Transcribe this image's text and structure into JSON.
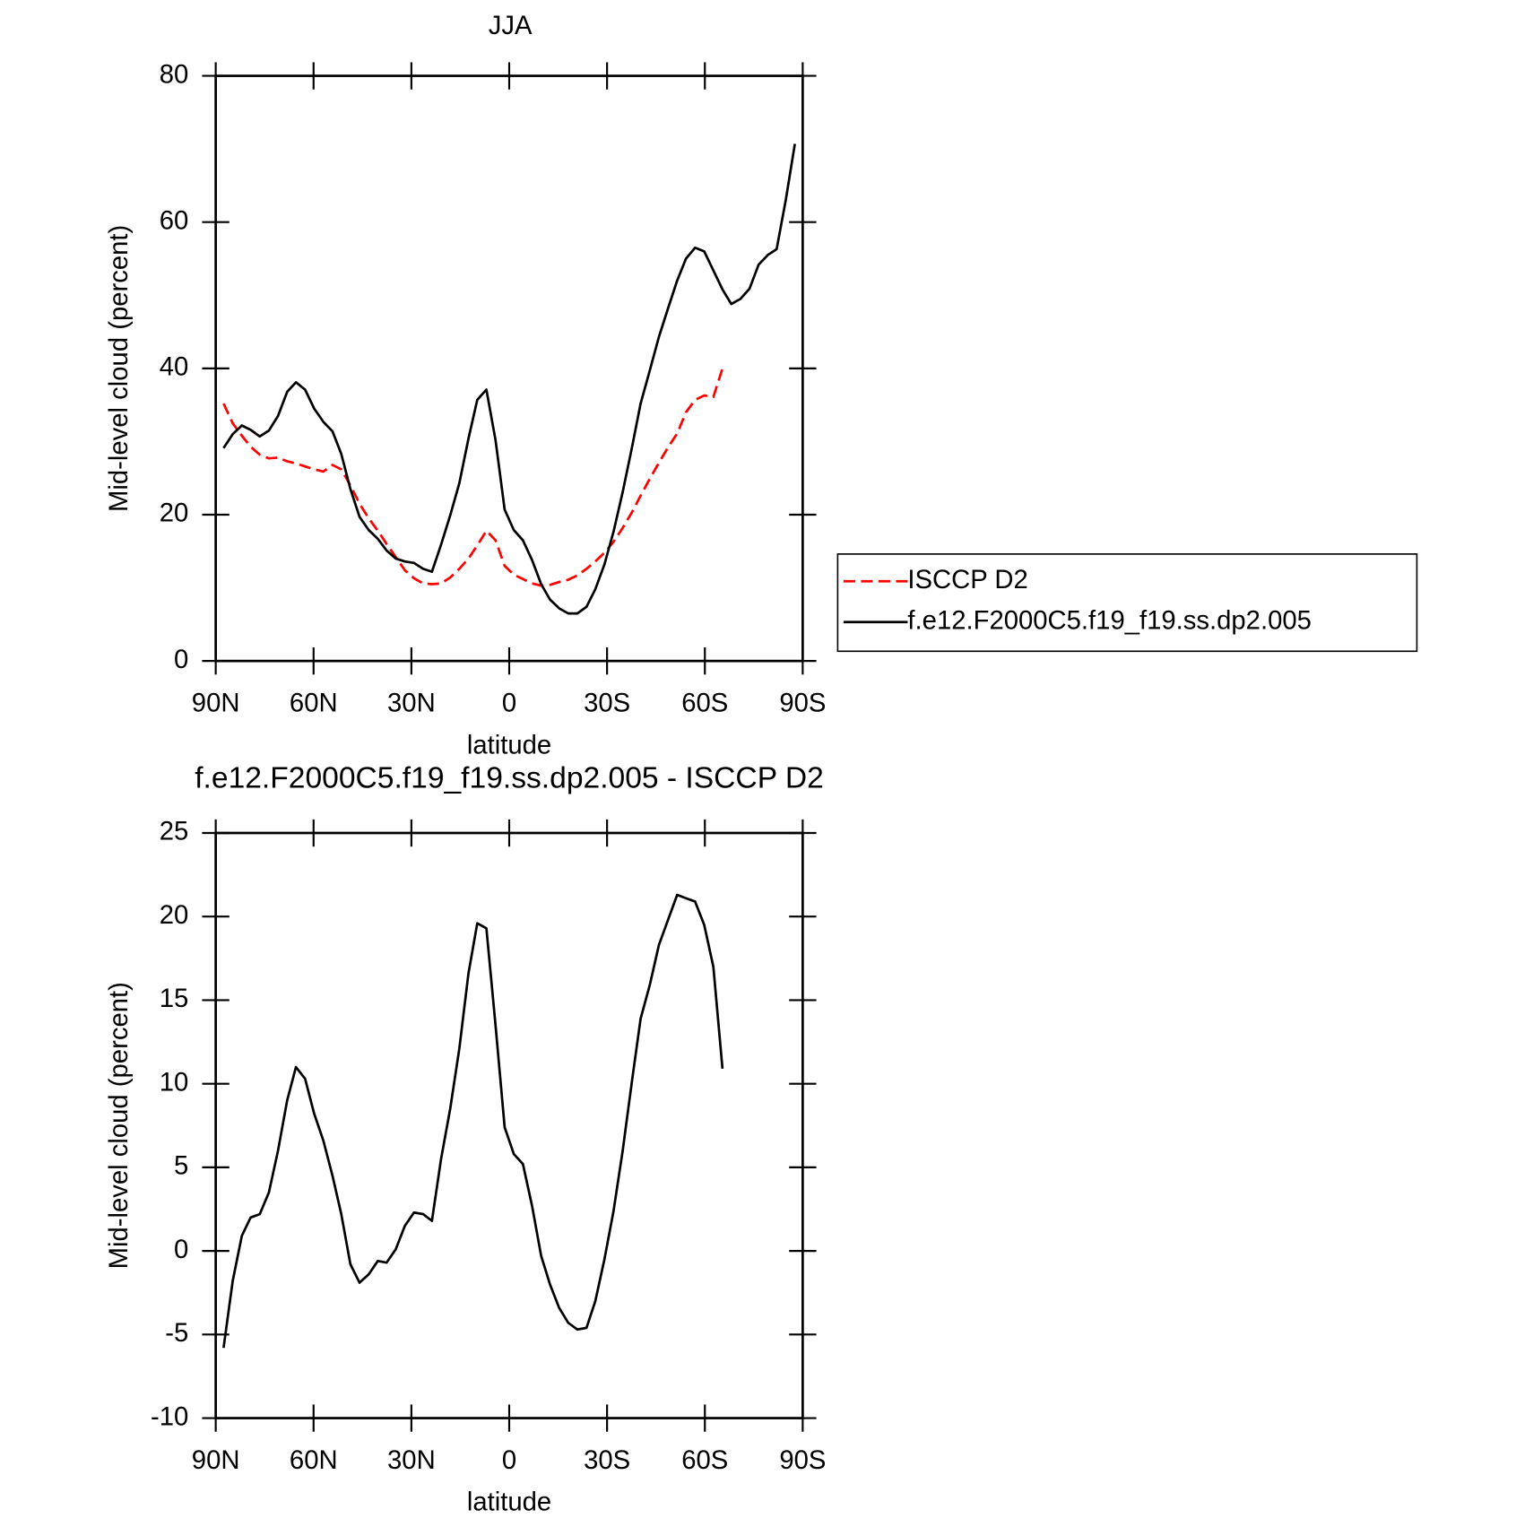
{
  "chart_data": [
    {
      "type": "line",
      "title": "JJA",
      "xlabel": "latitude",
      "ylabel": "Mid-level cloud (percent)",
      "x": [
        87.6,
        84.8,
        82.0,
        79.3,
        76.5,
        73.7,
        70.9,
        68.1,
        65.4,
        62.6,
        59.8,
        57.0,
        54.2,
        51.5,
        48.7,
        45.9,
        43.1,
        40.3,
        37.6,
        34.8,
        32.0,
        29.2,
        26.4,
        23.7,
        20.9,
        18.1,
        15.3,
        12.5,
        9.8,
        7.0,
        4.2,
        1.4,
        -1.4,
        -4.2,
        -7.0,
        -9.8,
        -12.5,
        -15.3,
        -18.1,
        -20.9,
        -23.7,
        -26.4,
        -29.2,
        -32.0,
        -34.8,
        -37.6,
        -40.3,
        -43.1,
        -45.9,
        -48.7,
        -51.5,
        -54.2,
        -57.0,
        -59.8,
        -62.6,
        -65.4,
        -68.1,
        -70.9,
        -73.7,
        -76.5,
        -79.3,
        -82.0,
        -84.8,
        -87.6
      ],
      "series": [
        {
          "name": "ISCCP D2",
          "color": "#ff0000",
          "style": "dashed",
          "values": [
            35.2,
            32.5,
            30.8,
            29.3,
            28.2,
            27.7,
            27.8,
            27.3,
            27,
            26.6,
            26.2,
            25.9,
            26.8,
            26.2,
            24,
            21.5,
            19.5,
            17.8,
            16,
            14.2,
            12.4,
            11.3,
            10.6,
            10.5,
            10.6,
            11.4,
            12.6,
            14,
            15.8,
            17.8,
            16.5,
            13,
            11.8,
            11.2,
            10.6,
            10.3,
            10.4,
            10.8,
            11.1,
            11.7,
            12.6,
            13.6,
            14.8,
            16.3,
            18.2,
            20.3,
            22.6,
            24.9,
            27.1,
            29.2,
            31.1,
            34,
            35.7,
            36.3,
            36.1,
            40,
            null,
            null,
            null,
            null,
            null,
            null,
            null,
            null
          ]
        },
        {
          "name": "f.e12.F2000C5.f19_f19.ss.dp2.005",
          "color": "#000000",
          "style": "solid",
          "values": [
            29.1,
            31,
            32.2,
            31.6,
            30.7,
            31.5,
            33.5,
            36.8,
            38.1,
            37.1,
            34.5,
            32.7,
            31.4,
            28.3,
            23.5,
            19.7,
            17.9,
            16.7,
            15.1,
            14,
            13.6,
            13.4,
            12.6,
            12.2,
            15.9,
            19.9,
            24.3,
            30.4,
            35.7,
            37.1,
            30.2,
            20.7,
            17.9,
            16.5,
            13.8,
            10.5,
            8.4,
            7.2,
            6.5,
            6.5,
            7.4,
            9.8,
            13.2,
            17.7,
            23.1,
            29.1,
            35.2,
            39.7,
            44.3,
            48.2,
            52,
            55,
            56.5,
            56,
            53.4,
            50.8,
            48.8,
            49.5,
            50.9,
            54.2,
            55.5,
            56.3,
            63,
            70.7
          ]
        }
      ],
      "xlim": [
        90,
        -90
      ],
      "xticks": [
        {
          "value": 90,
          "label": "90N"
        },
        {
          "value": 60,
          "label": "60N"
        },
        {
          "value": 30,
          "label": "30N"
        },
        0,
        {
          "value": -30,
          "label": "30S"
        },
        {
          "value": -60,
          "label": "60S"
        },
        {
          "value": -90,
          "label": "90S"
        }
      ],
      "ylim": [
        0,
        80
      ],
      "yticks": [
        0,
        20,
        40,
        60,
        80
      ],
      "legend": "right",
      "grid": false
    },
    {
      "type": "line",
      "title": "f.e12.F2000C5.f19_f19.ss.dp2.005 - ISCCP D2",
      "xlabel": "latitude",
      "ylabel": "Mid-level cloud (percent)",
      "x": [
        87.6,
        84.8,
        82.0,
        79.3,
        76.5,
        73.7,
        70.9,
        68.1,
        65.4,
        62.6,
        59.8,
        57.0,
        54.2,
        51.5,
        48.7,
        45.9,
        43.1,
        40.3,
        37.6,
        34.8,
        32.0,
        29.2,
        26.4,
        23.7,
        20.9,
        18.1,
        15.3,
        12.5,
        9.8,
        7.0,
        4.2,
        1.4,
        -1.4,
        -4.2,
        -7.0,
        -9.8,
        -12.5,
        -15.3,
        -18.1,
        -20.9,
        -23.7,
        -26.4,
        -29.2,
        -32.0,
        -34.8,
        -37.6,
        -40.3,
        -43.1,
        -45.9,
        -48.7,
        -51.5,
        -54.2,
        -57.0,
        -59.8,
        -62.6,
        -65.4
      ],
      "series": [
        {
          "color": "#000000",
          "style": "solid",
          "values": [
            -5.8,
            -1.8,
            0.9,
            2,
            2.2,
            3.5,
            6,
            9,
            11,
            10.3,
            8.2,
            6.6,
            4.5,
            2.2,
            -0.8,
            -1.9,
            -1.4,
            -0.6,
            -0.7,
            0.1,
            1.5,
            2.3,
            2.2,
            1.8,
            5.5,
            8.5,
            12.1,
            16.6,
            19.6,
            19.3,
            13.5,
            7.4,
            5.8,
            5.2,
            2.7,
            -0.3,
            -2,
            -3.4,
            -4.3,
            -4.7,
            -4.6,
            -3,
            -0.5,
            2.4,
            6,
            10.1,
            13.9,
            15.9,
            18.3,
            19.8,
            21.3,
            21.1,
            20.9,
            19.5,
            17,
            10.9
          ]
        }
      ],
      "xlim": [
        90,
        -90
      ],
      "xticks": [
        {
          "value": 90,
          "label": "90N"
        },
        {
          "value": 60,
          "label": "60N"
        },
        {
          "value": 30,
          "label": "30N"
        },
        0,
        {
          "value": -30,
          "label": "30S"
        },
        {
          "value": -60,
          "label": "60S"
        },
        {
          "value": -90,
          "label": "90S"
        }
      ],
      "ylim": [
        -10,
        25
      ],
      "yticks": [
        -10,
        -5,
        0,
        5,
        10,
        15,
        20,
        25
      ],
      "grid": false
    }
  ]
}
